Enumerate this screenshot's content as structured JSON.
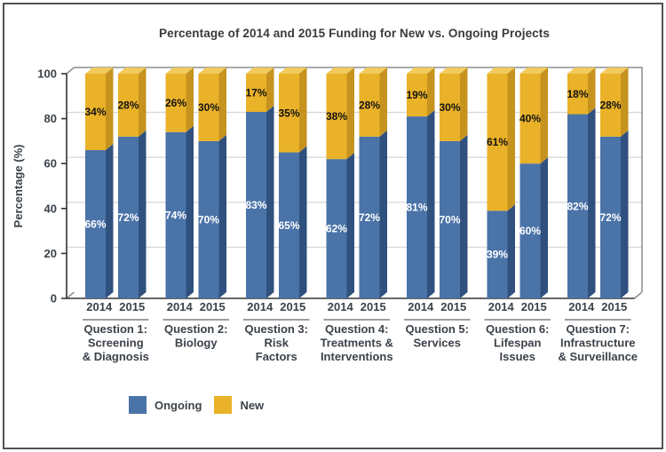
{
  "title": "Percentage of 2014 and 2015 Funding for New vs. Ongoing Projects",
  "chart_data": {
    "type": "bar",
    "stacked": true,
    "title": "Percentage of 2014 and 2015 Funding for New vs. Ongoing Projects",
    "xlabel": "",
    "ylabel": "Percentage (%)",
    "ylim": [
      0,
      100
    ],
    "yticks": [
      0,
      20,
      40,
      60,
      80,
      100
    ],
    "grid": true,
    "legend_position": "bottom-left",
    "years": [
      "2014",
      "2015"
    ],
    "categories": [
      "Question 1: Screening & Diagnosis",
      "Question 2: Biology",
      "Question 3: Risk Factors",
      "Question 4: Treatments & Interventions",
      "Question 5: Services",
      "Question 6: Lifespan Issues",
      "Question 7: Infrastructure & Surveillance"
    ],
    "category_label_lines": [
      [
        "Question 1:",
        "Screening",
        "& Diagnosis"
      ],
      [
        "Question 2:",
        "Biology"
      ],
      [
        "Question 3:",
        "Risk",
        "Factors"
      ],
      [
        "Question 4:",
        "Treatments &",
        "Interventions"
      ],
      [
        "Question 5:",
        "Services"
      ],
      [
        "Question 6:",
        "Lifespan",
        "Issues"
      ],
      [
        "Question 7:",
        "Infrastructure",
        "& Surveillance"
      ]
    ],
    "series": [
      {
        "name": "Ongoing",
        "color": "#4a73a8",
        "side_color": "#30517e",
        "label_color": "#ffffff",
        "values": {
          "2014": [
            66,
            74,
            83,
            62,
            81,
            39,
            82
          ],
          "2015": [
            72,
            70,
            65,
            72,
            70,
            60,
            72
          ]
        }
      },
      {
        "name": "New",
        "color": "#eab228",
        "side_color": "#c6931f",
        "top_color": "#f2ca5e",
        "label_color": "#121212",
        "values": {
          "2014": [
            34,
            26,
            17,
            38,
            19,
            61,
            18
          ],
          "2015": [
            28,
            30,
            35,
            28,
            30,
            40,
            28
          ]
        }
      }
    ],
    "colors": {
      "grid": "#d9d9d9",
      "axis": "#333333",
      "frame": "#8b8d90",
      "text": "#3b4249",
      "underline": "#9aa0a4",
      "border": "#515254"
    }
  }
}
